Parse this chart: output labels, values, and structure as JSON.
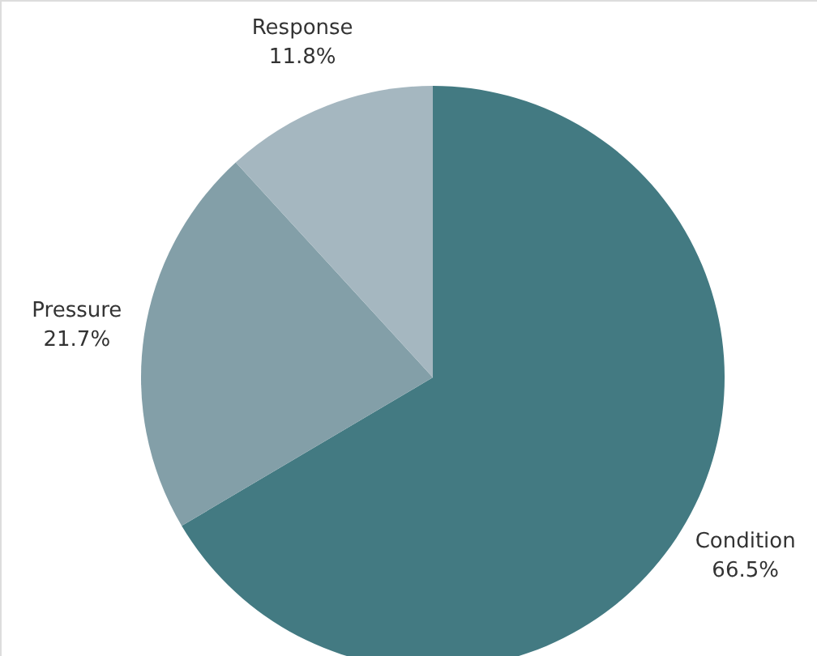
{
  "chart_data": {
    "type": "pie",
    "categories": [
      "Condition",
      "Pressure",
      "Response"
    ],
    "values": [
      66.5,
      21.7,
      11.8
    ],
    "value_labels": [
      "66.5%",
      "21.7%",
      "11.8%"
    ],
    "colors": [
      "#437a82",
      "#839fa8",
      "#a5b7c0"
    ]
  }
}
